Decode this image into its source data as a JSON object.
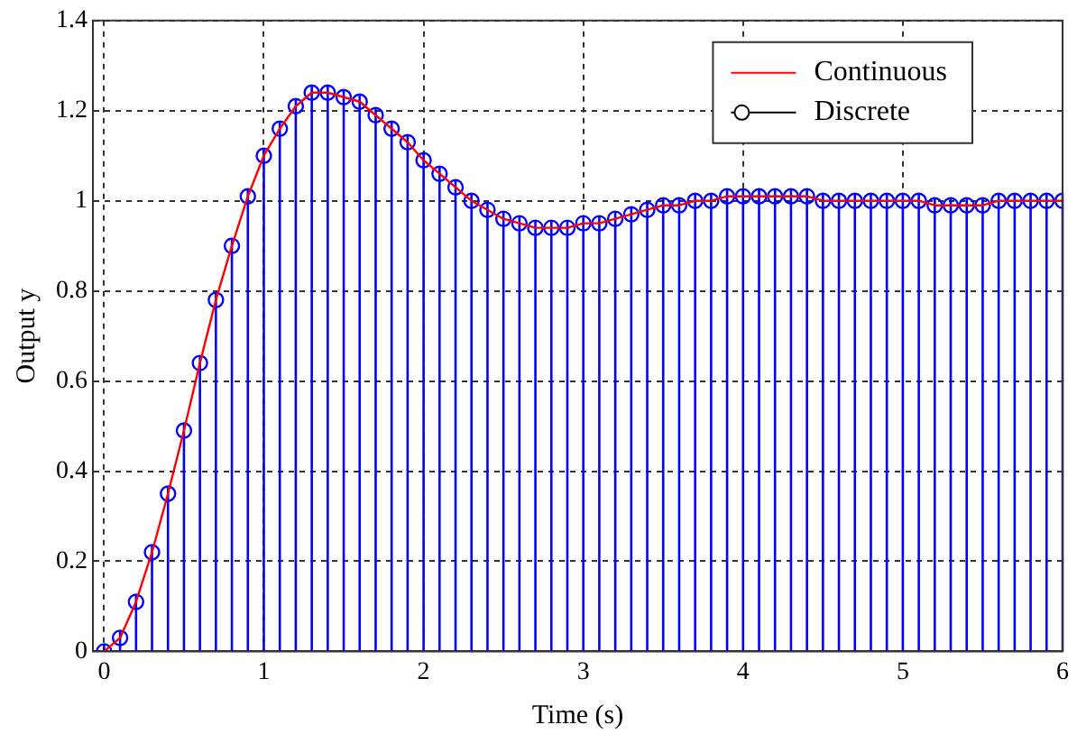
{
  "chart_data": {
    "type": "line",
    "xlabel": "Time (s)",
    "ylabel": "Output y",
    "x": [
      0,
      0.1,
      0.2,
      0.3,
      0.4,
      0.5,
      0.6,
      0.7,
      0.8,
      0.9,
      1,
      1.1,
      1.2,
      1.3,
      1.4,
      1.5,
      1.6,
      1.7,
      1.8,
      1.9,
      2,
      2.1,
      2.2,
      2.3,
      2.4,
      2.5,
      2.6,
      2.7,
      2.8,
      2.9,
      3,
      3.1,
      3.2,
      3.3,
      3.4,
      3.5,
      3.6,
      3.7,
      3.8,
      3.9,
      4,
      4.1,
      4.2,
      4.3,
      4.4,
      4.5,
      4.6,
      4.7,
      4.8,
      4.9,
      5,
      5.1,
      5.2,
      5.3,
      5.4,
      5.5,
      5.6,
      5.7,
      5.8,
      5.9,
      6
    ],
    "series": [
      {
        "name": "Continuous",
        "type": "line",
        "color": "#ff0000",
        "marker": "none",
        "values": [
          0,
          0.03,
          0.11,
          0.22,
          0.35,
          0.49,
          0.64,
          0.78,
          0.9,
          1.01,
          1.1,
          1.16,
          1.21,
          1.24,
          1.24,
          1.23,
          1.22,
          1.19,
          1.16,
          1.13,
          1.09,
          1.06,
          1.03,
          1,
          0.98,
          0.96,
          0.95,
          0.94,
          0.94,
          0.94,
          0.95,
          0.95,
          0.96,
          0.97,
          0.98,
          0.99,
          0.99,
          1,
          1,
          1.01,
          1.01,
          1.01,
          1.01,
          1.01,
          1.01,
          1,
          1,
          1,
          1,
          1,
          1,
          1,
          0.99,
          0.99,
          0.99,
          0.99,
          1,
          1,
          1,
          1,
          1
        ]
      },
      {
        "name": "Discrete",
        "type": "lollipop",
        "color": "#0000ff",
        "marker": "circle",
        "values": [
          0,
          0.03,
          0.11,
          0.22,
          0.35,
          0.49,
          0.64,
          0.78,
          0.9,
          1.01,
          1.1,
          1.16,
          1.21,
          1.24,
          1.24,
          1.23,
          1.22,
          1.19,
          1.16,
          1.13,
          1.09,
          1.06,
          1.03,
          1,
          0.98,
          0.96,
          0.95,
          0.94,
          0.94,
          0.94,
          0.95,
          0.95,
          0.96,
          0.97,
          0.98,
          0.99,
          0.99,
          1,
          1,
          1.01,
          1.01,
          1.01,
          1.01,
          1.01,
          1.01,
          1,
          1,
          1,
          1,
          1,
          1,
          1,
          0.99,
          0.99,
          0.99,
          0.99,
          1,
          1,
          1,
          1,
          1
        ]
      }
    ],
    "xlim": [
      -0.07,
      6
    ],
    "xticks": [
      0,
      1,
      2,
      3,
      4,
      5,
      6
    ],
    "ylim": [
      0,
      1.4
    ],
    "yticks": [
      0,
      0.2,
      0.4,
      0.6,
      0.8,
      1,
      1.2,
      1.4
    ],
    "grid": true,
    "line_style": "solid",
    "legend": "top right"
  }
}
